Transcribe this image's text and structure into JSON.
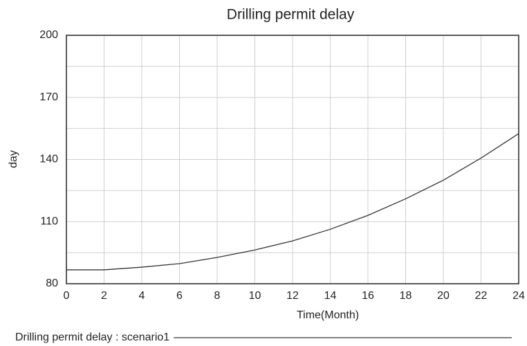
{
  "chart_data": {
    "type": "line",
    "title": "Drilling permit delay",
    "x_label": "Time(Month)",
    "y_label": "day",
    "x": [
      0,
      2,
      4,
      6,
      8,
      10,
      12,
      14,
      16,
      18,
      20,
      22,
      24
    ],
    "series": [
      {
        "name": "Drilling permit delay : scenario1",
        "color": "#333333",
        "values": [
          86.7,
          86.7,
          88,
          89.7,
          92.7,
          96.3,
          100.7,
          106.3,
          113,
          121,
          130,
          140.7,
          152.5
        ]
      }
    ],
    "xlim": [
      0,
      24
    ],
    "xticks": [
      0,
      2,
      4,
      6,
      8,
      10,
      12,
      14,
      16,
      18,
      20,
      22,
      24
    ],
    "ylim": [
      80,
      200
    ],
    "yticks": [
      80,
      110,
      140,
      170,
      200
    ],
    "ygrid": [
      80,
      95,
      110,
      125,
      140,
      155,
      170,
      185,
      200
    ],
    "grid": true
  }
}
